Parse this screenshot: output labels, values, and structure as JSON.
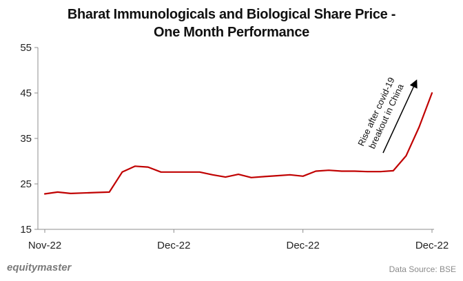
{
  "chart_data": {
    "type": "line",
    "title_line1": "Bharat Immunologicals and Biological Share Price -",
    "title_line2": "One Month Performance",
    "xlabel": "",
    "ylabel": "",
    "ylim": [
      15,
      55
    ],
    "yticks": [
      15,
      25,
      35,
      45,
      55
    ],
    "xtick_labels": [
      "Nov-22",
      "Dec-22",
      "Dec-22",
      "Dec-22"
    ],
    "xtick_index": [
      0,
      10,
      20,
      30
    ],
    "grid": false,
    "series": [
      {
        "color": "#c00000",
        "values": [
          22.8,
          23.2,
          22.9,
          23.0,
          23.1,
          23.2,
          27.6,
          28.9,
          28.7,
          27.6,
          27.6,
          27.6,
          27.6,
          27.0,
          26.5,
          27.1,
          26.4,
          26.6,
          26.8,
          27.0,
          26.7,
          27.8,
          28.0,
          27.8,
          27.8,
          27.7,
          27.7,
          27.9,
          31.2,
          37.5,
          45.0
        ]
      }
    ],
    "annotation": {
      "line1": "Rise after covid-19",
      "line2": "breakout in China"
    }
  },
  "footer": {
    "brand": "equitymaster",
    "source": "Data Source: BSE"
  }
}
